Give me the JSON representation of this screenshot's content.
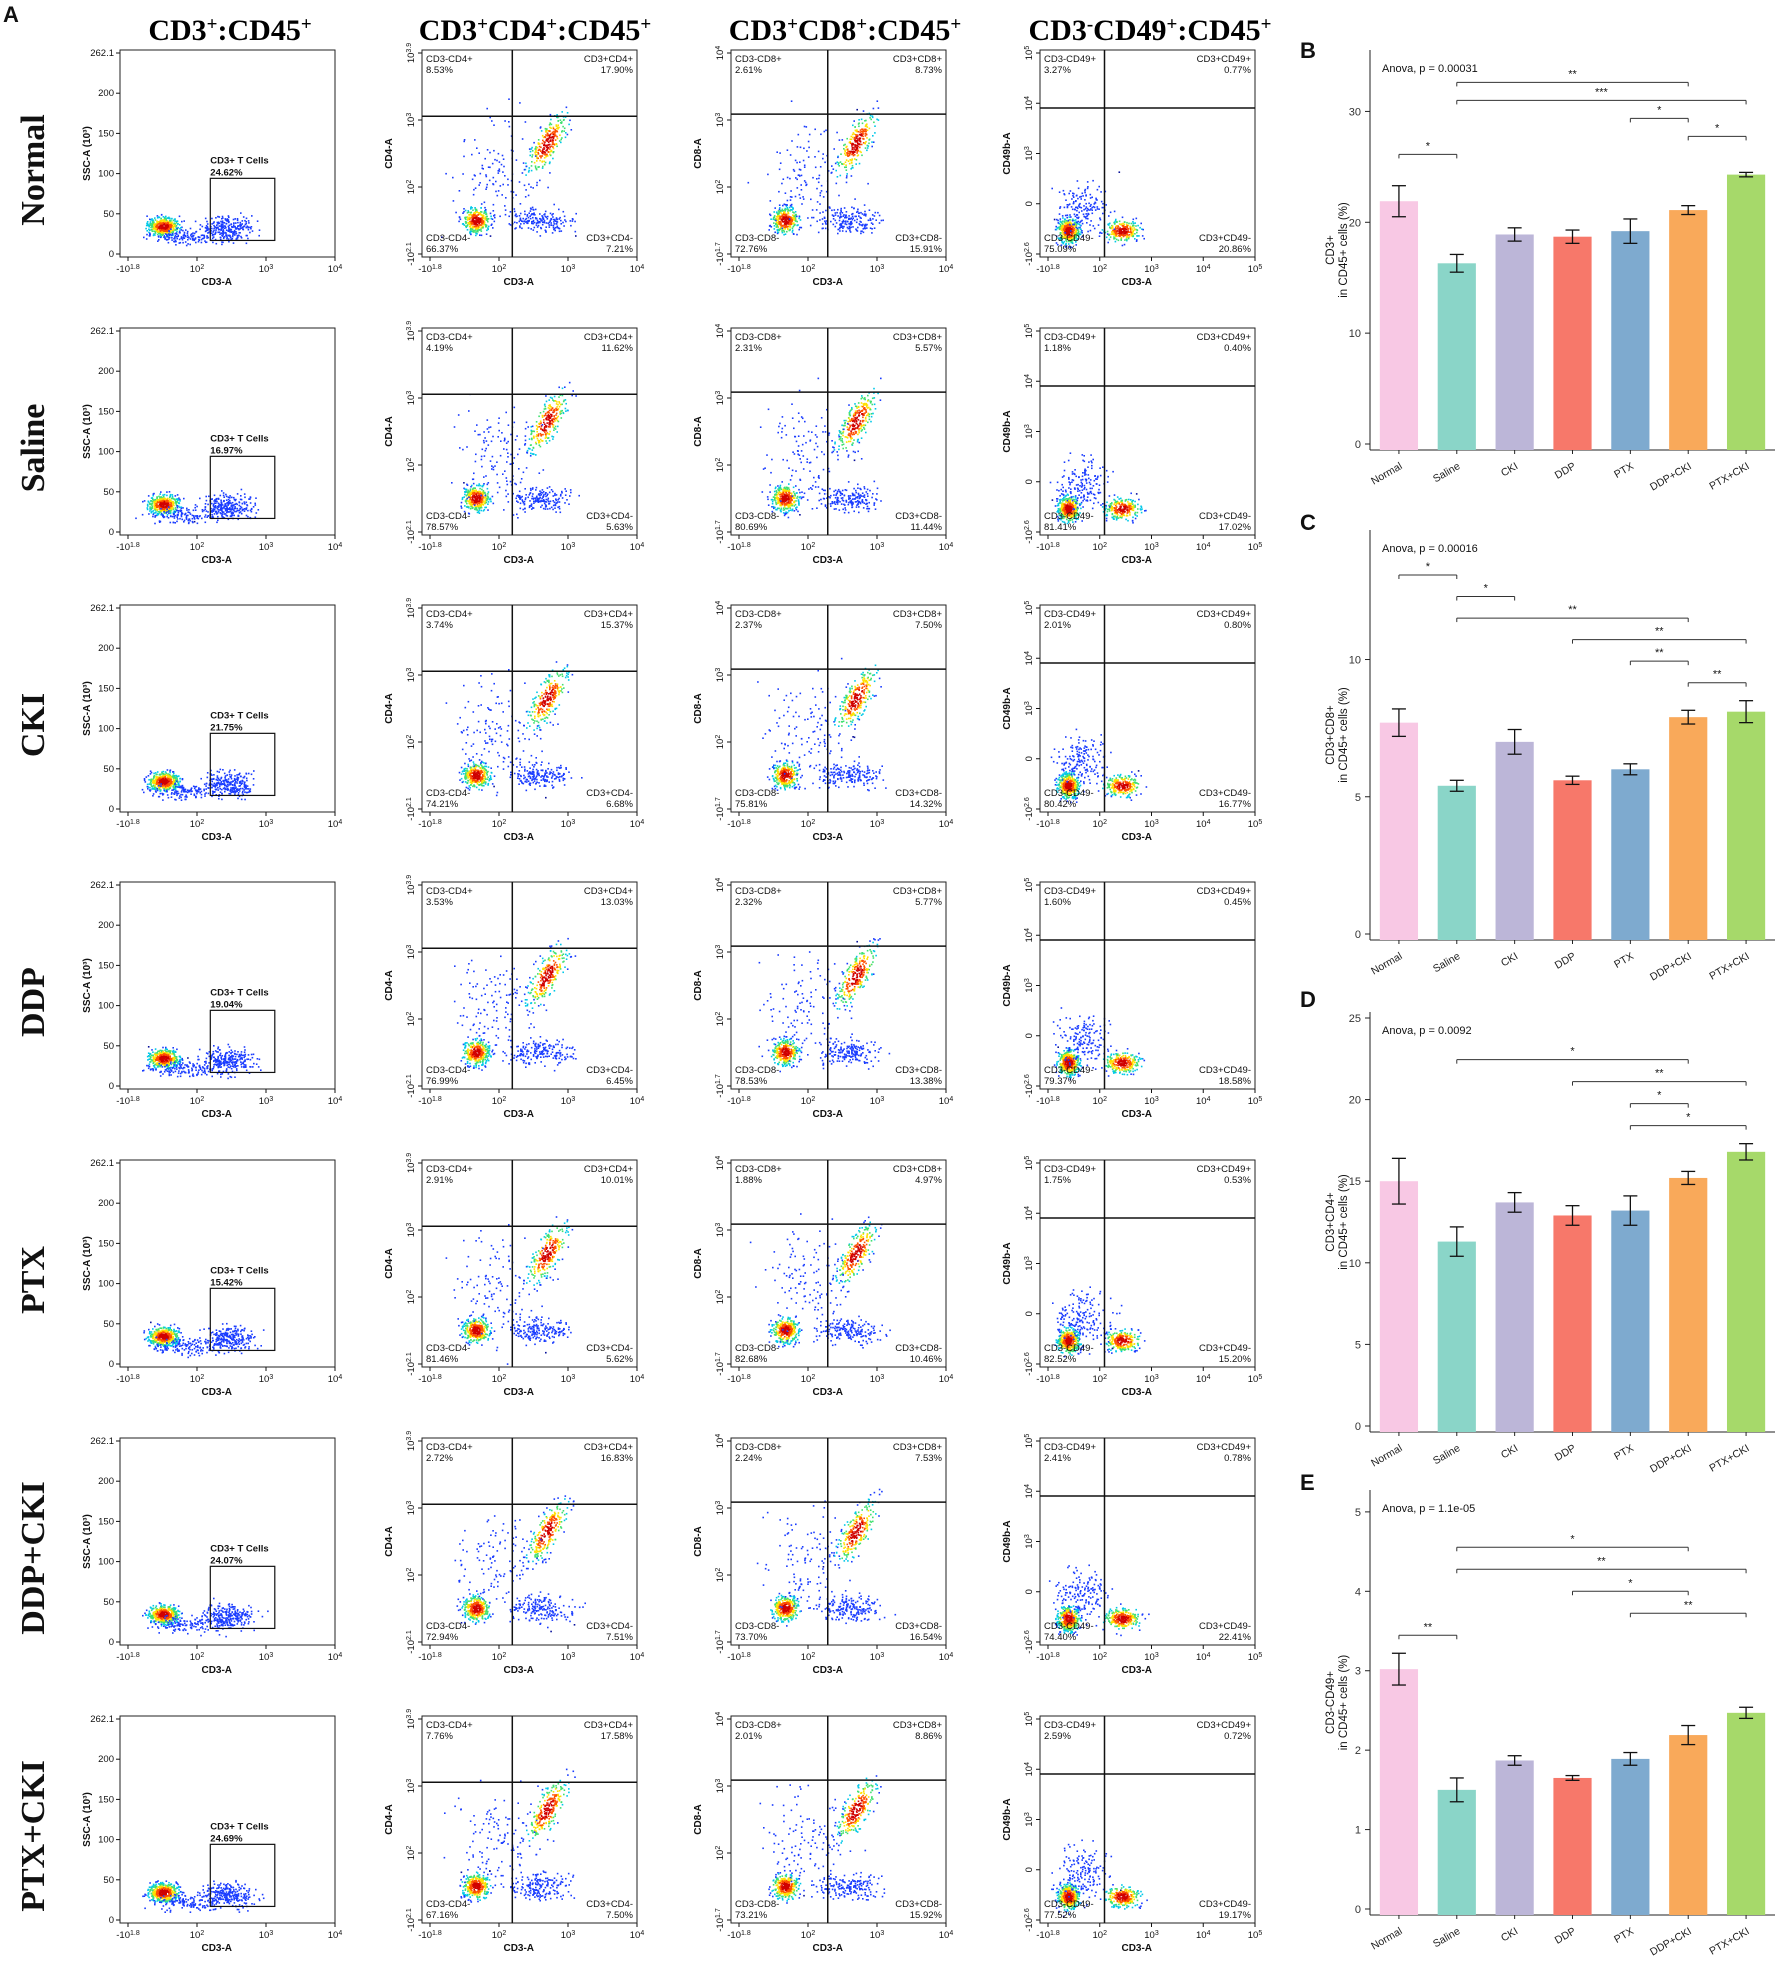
{
  "colors": {
    "bars": [
      "#f8c8e4",
      "#8ad5c8",
      "#bcb6d8",
      "#f7786a",
      "#7eaacf",
      "#f9a95a",
      "#a6d96a"
    ],
    "error": "#111111",
    "gate": "#000000",
    "density": [
      "#08109a",
      "#1a3cff",
      "#00c8e8",
      "#40e070",
      "#ffe000",
      "#ff5000",
      "#d00000"
    ]
  },
  "panel_labels": [
    "A",
    "B",
    "C",
    "D",
    "E"
  ],
  "column_headers": [
    {
      "base": "CD3",
      "sup": "+",
      "rest": ":CD45",
      "sup2": "+"
    },
    {
      "base": "CD3",
      "sup": "+",
      "mid": "CD4",
      "sup_mid": "+",
      "rest": ":CD45",
      "sup2": "+"
    },
    {
      "base": "CD3",
      "sup": "+",
      "mid": "CD8",
      "sup_mid": "+",
      "rest": ":CD45",
      "sup2": "+"
    },
    {
      "base": "CD3",
      "sup": "-",
      "mid": "CD49",
      "sup_mid": "+",
      "rest": ":CD45",
      "sup2": "+"
    }
  ],
  "flow": {
    "groups": [
      "Normal",
      "Saline",
      "CKI",
      "DDP",
      "PTX",
      "DDP+CKI",
      "PTX+CKI"
    ],
    "ssc": {
      "xlabel": "CD3-A",
      "ylabel": "SSC-A (10³)",
      "yticks": [
        "0",
        "50",
        "100",
        "150",
        "200",
        "262.1"
      ],
      "xticks": [
        "-10 1.8",
        "10 2",
        "10 3",
        "10 4"
      ],
      "gate_label": "CD3+ T Cells",
      "values": [
        "24.62%",
        "16.97%",
        "21.75%",
        "19.04%",
        "15.42%",
        "24.07%",
        "24.69%"
      ]
    },
    "cd4": {
      "xlabel": "CD3-A",
      "ylabel": "CD4-A",
      "yticks": [
        "-10 2.1",
        "10 2",
        "10 3",
        "10 3.9"
      ],
      "xticks": [
        "-10 1.8",
        "10 2",
        "10 3",
        "10 4"
      ],
      "quad_names": [
        "CD3-CD4+",
        "CD3+CD4+",
        "CD3-CD4-",
        "CD3+CD4-"
      ],
      "values": [
        [
          "8.53%",
          "17.90%",
          "66.37%",
          "7.21%"
        ],
        [
          "4.19%",
          "11.62%",
          "78.57%",
          "5.63%"
        ],
        [
          "3.74%",
          "15.37%",
          "74.21%",
          "6.68%"
        ],
        [
          "3.53%",
          "13.03%",
          "76.99%",
          "6.45%"
        ],
        [
          "2.91%",
          "10.01%",
          "81.46%",
          "5.62%"
        ],
        [
          "2.72%",
          "16.83%",
          "72.94%",
          "7.51%"
        ],
        [
          "7.76%",
          "17.58%",
          "67.16%",
          "7.50%"
        ]
      ]
    },
    "cd8": {
      "xlabel": "CD3-A",
      "ylabel": "CD8-A",
      "yticks": [
        "-10 1.7",
        "10 2",
        "10 3",
        "10 4"
      ],
      "xticks": [
        "-10 1.8",
        "10 2",
        "10 3",
        "10 4"
      ],
      "quad_names": [
        "CD3-CD8+",
        "CD3+CD8+",
        "CD3-CD8-",
        "CD3+CD8-"
      ],
      "values": [
        [
          "2.61%",
          "8.73%",
          "72.76%",
          "15.91%"
        ],
        [
          "2.31%",
          "5.57%",
          "80.69%",
          "11.44%"
        ],
        [
          "2.37%",
          "7.50%",
          "75.81%",
          "14.32%"
        ],
        [
          "2.32%",
          "5.77%",
          "78.53%",
          "13.38%"
        ],
        [
          "1.88%",
          "4.97%",
          "82.68%",
          "10.46%"
        ],
        [
          "2.24%",
          "7.53%",
          "73.70%",
          "16.54%"
        ],
        [
          "2.01%",
          "8.86%",
          "73.21%",
          "15.92%"
        ]
      ]
    },
    "cd49": {
      "xlabel": "CD3-A",
      "ylabel": "CD49b-A",
      "yticks": [
        "-10 2.6",
        "0",
        "10 3",
        "10 4",
        "10 5"
      ],
      "xticks": [
        "-10 1.8",
        "10 2",
        "10 3",
        "10 4",
        "10 5"
      ],
      "quad_names": [
        "CD3-CD49+",
        "CD3+CD49+",
        "CD3-CD49-",
        "CD3+CD49-"
      ],
      "values": [
        [
          "3.27%",
          "0.77%",
          "75.09%",
          "20.86%"
        ],
        [
          "1.18%",
          "0.40%",
          "81.41%",
          "17.02%"
        ],
        [
          "2.01%",
          "0.80%",
          "80.42%",
          "16.77%"
        ],
        [
          "1.60%",
          "0.45%",
          "79.37%",
          "18.58%"
        ],
        [
          "1.75%",
          "0.53%",
          "82.52%",
          "15.20%"
        ],
        [
          "2.41%",
          "0.78%",
          "74.40%",
          "22.41%"
        ],
        [
          "2.59%",
          "0.72%",
          "77.52%",
          "19.17%"
        ]
      ]
    }
  },
  "chart_data": [
    {
      "panel": "B",
      "type": "bar",
      "categories": [
        "Normal",
        "Saline",
        "CKI",
        "DDP",
        "PTX",
        "DDP+CKI",
        "PTX+CKI"
      ],
      "values": [
        21.9,
        16.3,
        18.9,
        18.7,
        19.2,
        21.1,
        24.3
      ],
      "errors": [
        1.4,
        0.8,
        0.6,
        0.6,
        1.1,
        0.4,
        0.2
      ],
      "ylabel": [
        "CD3+",
        "in CD45+ cells (%)"
      ],
      "ylim": [
        0,
        35
      ],
      "yticks": [
        0,
        10,
        20,
        30
      ],
      "annotation": "Anova, p = 0.00031",
      "brackets": [
        {
          "from": 0,
          "to": 1,
          "label": "*"
        },
        {
          "from": 1,
          "to": 5,
          "label": "**"
        },
        {
          "from": 1,
          "to": 6,
          "label": "***"
        },
        {
          "from": 4,
          "to": 5,
          "label": "*"
        },
        {
          "from": 5,
          "to": 6,
          "label": "*"
        }
      ]
    },
    {
      "panel": "C",
      "type": "bar",
      "categories": [
        "Normal",
        "Saline",
        "CKI",
        "DDP",
        "PTX",
        "DDP+CKI",
        "PTX+CKI"
      ],
      "values": [
        7.7,
        5.4,
        7.0,
        5.6,
        6.0,
        7.9,
        8.1
      ],
      "errors": [
        0.5,
        0.2,
        0.45,
        0.15,
        0.2,
        0.25,
        0.4
      ],
      "ylabel": [
        "CD3+CD8+",
        "in CD45+ cells (%)"
      ],
      "ylim": [
        0,
        14.5
      ],
      "yticks": [
        0,
        5,
        10
      ],
      "annotation": "Anova, p = 0.00016",
      "brackets": [
        {
          "from": 0,
          "to": 1,
          "label": "*"
        },
        {
          "from": 1,
          "to": 2,
          "label": "*"
        },
        {
          "from": 1,
          "to": 5,
          "label": "**"
        },
        {
          "from": 3,
          "to": 6,
          "label": "**"
        },
        {
          "from": 4,
          "to": 5,
          "label": "**"
        },
        {
          "from": 5,
          "to": 6,
          "label": "**"
        }
      ]
    },
    {
      "panel": "D",
      "type": "bar",
      "categories": [
        "Normal",
        "Saline",
        "CKI",
        "DDP",
        "PTX",
        "DDP+CKI",
        "PTX+CKI"
      ],
      "values": [
        15.0,
        11.3,
        13.7,
        12.9,
        13.2,
        15.2,
        16.8
      ],
      "errors": [
        1.4,
        0.9,
        0.6,
        0.6,
        0.9,
        0.4,
        0.5
      ],
      "ylabel": [
        "CD3+CD4+",
        "in CD45+ cells (%)"
      ],
      "ylim": [
        0,
        25
      ],
      "yticks": [
        0,
        5,
        10,
        15,
        20,
        25
      ],
      "annotation": "Anova, p = 0.0092",
      "brackets": [
        {
          "from": 1,
          "to": 5,
          "label": "*"
        },
        {
          "from": 3,
          "to": 6,
          "label": "**"
        },
        {
          "from": 4,
          "to": 5,
          "label": "*"
        },
        {
          "from": 4,
          "to": 6,
          "label": "*"
        }
      ]
    },
    {
      "panel": "E",
      "type": "bar",
      "categories": [
        "Normal",
        "Saline",
        "CKI",
        "DDP",
        "PTX",
        "DDP+CKI",
        "PTX+CKI"
      ],
      "values": [
        3.02,
        1.5,
        1.87,
        1.65,
        1.89,
        2.19,
        2.47
      ],
      "errors": [
        0.2,
        0.15,
        0.06,
        0.03,
        0.08,
        0.12,
        0.07
      ],
      "ylabel": [
        "CD3-CD49+",
        "in CD45+ cells (%)"
      ],
      "ylim": [
        0,
        5.2
      ],
      "yticks": [
        0,
        1,
        2,
        3,
        4,
        5
      ],
      "annotation": "Anova, p = 1.1e-05",
      "brackets": [
        {
          "from": 0,
          "to": 1,
          "label": "**"
        },
        {
          "from": 1,
          "to": 5,
          "label": "*"
        },
        {
          "from": 1,
          "to": 6,
          "label": "**"
        },
        {
          "from": 3,
          "to": 5,
          "label": "*"
        },
        {
          "from": 4,
          "to": 6,
          "label": "**"
        }
      ]
    }
  ]
}
